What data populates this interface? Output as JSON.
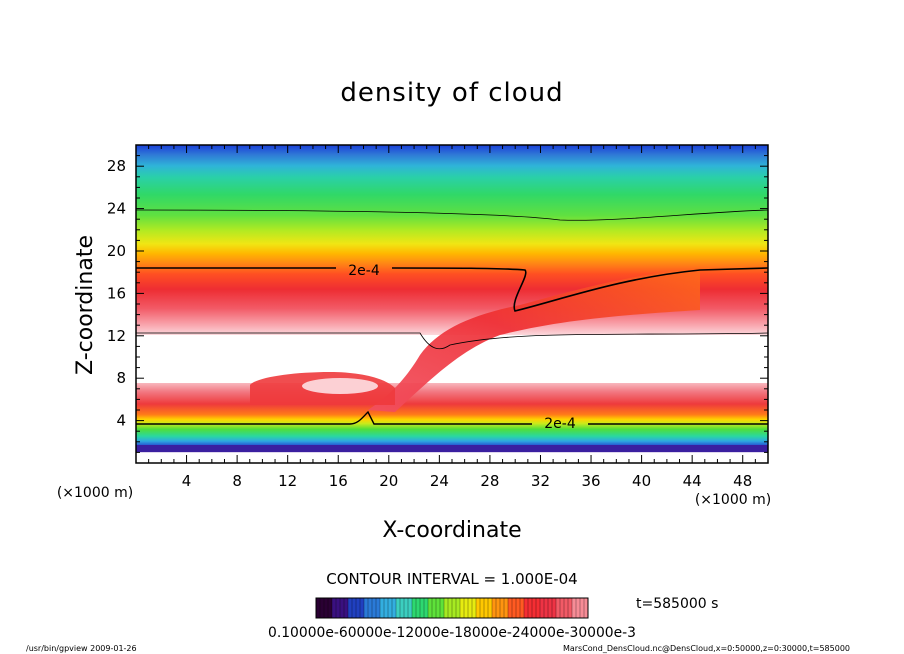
{
  "chart_data": {
    "type": "heatmap",
    "title": "density of cloud",
    "xlabel": "X-coordinate",
    "ylabel": "Z-coordinate",
    "x_unit": "(×1000 m)",
    "z_unit": "(×1000 m)",
    "xlim": [
      0,
      50
    ],
    "zlim": [
      0,
      30
    ],
    "x_ticks": [
      4,
      8,
      12,
      16,
      20,
      24,
      28,
      32,
      36,
      40,
      44,
      48
    ],
    "z_ticks": [
      4,
      8,
      12,
      16,
      20,
      24,
      28
    ],
    "contour_interval_text": "CONTOUR INTERVAL = 1.000E-04",
    "contour_labels": [
      "2e-4",
      "2e-4"
    ],
    "time_label": "t=585000 s",
    "colorbar_labels_text": "0.10000e-60000e-12000e-18000e-24000e-30000e-3",
    "colorbar_colors": [
      "#2a0033",
      "#3a1080",
      "#2040c0",
      "#2a7ad8",
      "#33aee0",
      "#3ccfc0",
      "#2dd870",
      "#5ee23a",
      "#a6ea22",
      "#e6ec10",
      "#ffc800",
      "#ff9410",
      "#ff5a22",
      "#f52e33",
      "#ee3344",
      "#f25a66",
      "#f78c96"
    ],
    "colors": {
      "band_top": "#1a3fd8",
      "band_mid": "#2ad870",
      "band_warm": "#f2e23a",
      "band_red": "#ee2d33",
      "band_pink": "#f9b0b6"
    }
  },
  "footer": {
    "left": "/usr/bin/gpview  2009-01-26",
    "right": "MarsCond_DensCloud.nc@DensCloud,x=0:50000,z=0:30000,t=585000"
  }
}
